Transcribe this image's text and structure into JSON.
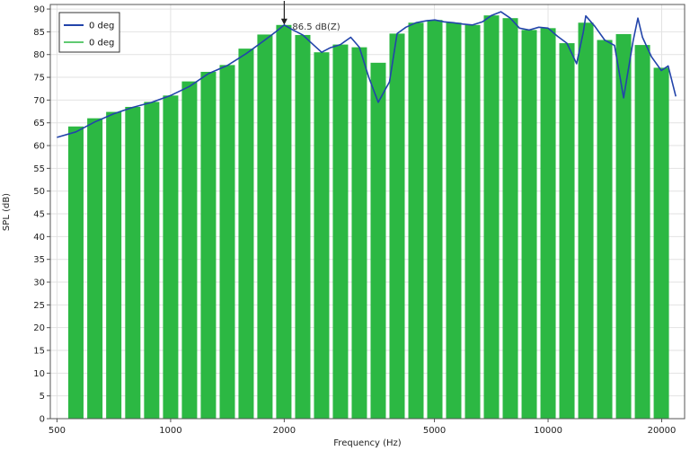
{
  "chart_data": {
    "type": "bar",
    "title": "",
    "xlabel": "Frequency (Hz)",
    "ylabel": "SPL (dB)",
    "x_scale": "log",
    "xlim": [
      480,
      23000
    ],
    "ylim": [
      0,
      91
    ],
    "x_ticks": [
      500,
      1000,
      2000,
      5000,
      10000,
      20000
    ],
    "x_tick_labels": [
      "500",
      "1000",
      "2000",
      "5000",
      "10000",
      "20000"
    ],
    "y_ticks": [
      0,
      5,
      10,
      15,
      20,
      25,
      30,
      35,
      40,
      45,
      50,
      55,
      60,
      65,
      70,
      75,
      80,
      85,
      90
    ],
    "y_tick_labels": [
      "0",
      "5",
      "10",
      "15",
      "20",
      "25",
      "30",
      "35",
      "40",
      "45",
      "50",
      "55",
      "60",
      "65",
      "70",
      "75",
      "80",
      "85",
      "90"
    ],
    "grid": true,
    "legend_position": "top-left",
    "legend": [
      {
        "label": "0 deg",
        "kind": "line",
        "color": "#2244aa"
      },
      {
        "label": "0 deg",
        "kind": "bar",
        "color": "#2cb843"
      }
    ],
    "bars": {
      "name": "0 deg",
      "color": "#2cb843",
      "x": [
        561,
        630,
        707,
        794,
        891,
        1000,
        1122,
        1259,
        1413,
        1585,
        1778,
        1995,
        2239,
        2512,
        2818,
        3162,
        3548,
        3981,
        4467,
        5012,
        5623,
        6310,
        7079,
        7943,
        8913,
        10000,
        11220,
        12589,
        14125,
        15849,
        17783,
        19953
      ],
      "values": [
        64.2,
        66.0,
        67.4,
        68.5,
        69.6,
        71.0,
        74.1,
        76.2,
        77.7,
        81.3,
        84.4,
        86.5,
        84.3,
        80.5,
        82.2,
        81.6,
        78.2,
        84.6,
        87.0,
        87.6,
        87.0,
        86.5,
        88.6,
        88.0,
        85.4,
        85.8,
        82.5,
        87.0,
        83.2,
        84.5,
        82.1,
        77.1
      ]
    },
    "line": {
      "name": "0 deg",
      "color": "#2244aa",
      "x": [
        500,
        561,
        630,
        707,
        794,
        891,
        1000,
        1122,
        1259,
        1413,
        1585,
        1778,
        1900,
        2000,
        2100,
        2239,
        2400,
        2512,
        2650,
        2818,
        3000,
        3162,
        3350,
        3548,
        3800,
        3981,
        4200,
        4467,
        4750,
        5012,
        5300,
        5623,
        5950,
        6310,
        6700,
        7079,
        7500,
        7943,
        8400,
        8913,
        9450,
        10000,
        10600,
        11220,
        11900,
        12400,
        12589,
        13300,
        14125,
        15000,
        15849,
        16800,
        17300,
        17783,
        18800,
        19953,
        20800,
        21800
      ],
      "values": [
        61.8,
        63.0,
        65.2,
        67.0,
        68.4,
        69.5,
        71.0,
        73.0,
        75.8,
        77.6,
        80.2,
        83.2,
        85.0,
        86.5,
        85.5,
        84.3,
        82.0,
        80.5,
        81.5,
        82.2,
        83.8,
        81.6,
        75.0,
        69.5,
        74.0,
        84.6,
        86.0,
        87.0,
        87.4,
        87.6,
        87.2,
        87.0,
        86.7,
        86.5,
        87.2,
        88.6,
        89.4,
        88.0,
        85.8,
        85.4,
        86.0,
        85.8,
        84.0,
        82.5,
        78.0,
        85.0,
        88.5,
        86.2,
        83.2,
        82.0,
        70.5,
        83.0,
        88.0,
        83.8,
        79.5,
        76.5,
        77.5,
        70.8
      ]
    },
    "annotation": {
      "text": "86.5 dB(Z)",
      "x": 2000,
      "y": 86.5
    }
  }
}
